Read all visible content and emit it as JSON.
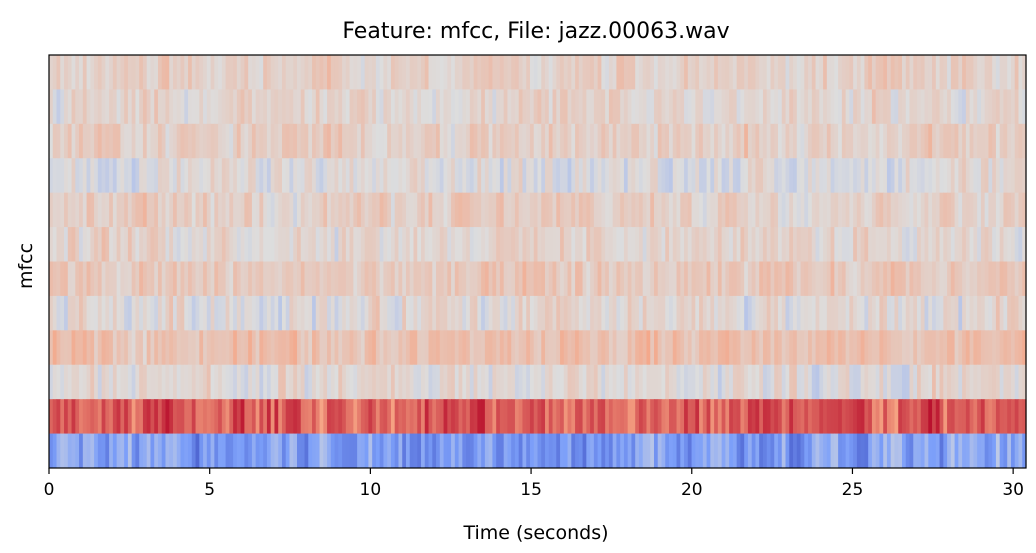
{
  "chart_data": {
    "type": "heatmap",
    "title": "Feature: mfcc, File: jazz.00063.wav",
    "xlabel": "Time (seconds)",
    "ylabel": "mfcc",
    "xlim": [
      0,
      30.4
    ],
    "x_ticks": [
      0,
      5,
      10,
      15,
      20,
      25,
      30
    ],
    "y_ticks": [],
    "colormap": "coolwarm",
    "grid": false,
    "legend": "none",
    "rows_top_to_bottom": [
      {
        "coefficient": 13,
        "mean_level": 0.56,
        "variation": 0.05
      },
      {
        "coefficient": 12,
        "mean_level": 0.54,
        "variation": 0.05
      },
      {
        "coefficient": 11,
        "mean_level": 0.57,
        "variation": 0.05
      },
      {
        "coefficient": 10,
        "mean_level": 0.5,
        "variation": 0.05
      },
      {
        "coefficient": 9,
        "mean_level": 0.57,
        "variation": 0.05
      },
      {
        "coefficient": 8,
        "mean_level": 0.55,
        "variation": 0.05
      },
      {
        "coefficient": 7,
        "mean_level": 0.58,
        "variation": 0.05
      },
      {
        "coefficient": 6,
        "mean_level": 0.52,
        "variation": 0.06
      },
      {
        "coefficient": 5,
        "mean_level": 0.63,
        "variation": 0.05
      },
      {
        "coefficient": 4,
        "mean_level": 0.52,
        "variation": 0.06
      },
      {
        "coefficient": 3,
        "mean_level": 0.86,
        "variation": 0.06
      },
      {
        "coefficient": 2,
        "mean_level": 0.26,
        "variation": 0.09
      }
    ]
  }
}
